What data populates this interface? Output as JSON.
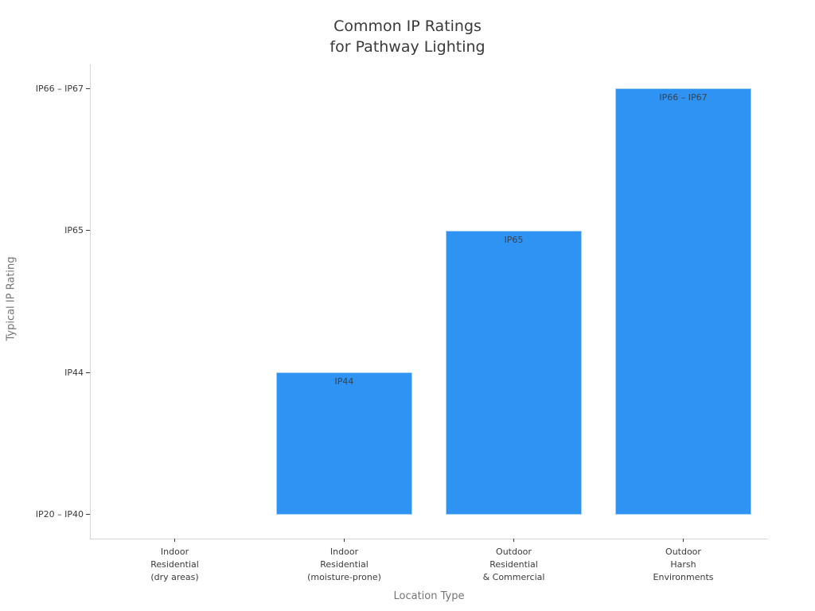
{
  "title_lines": [
    "Common IP Ratings",
    "for Pathway Lighting"
  ],
  "chart_data": {
    "type": "bar",
    "title": "Common IP Ratings for Pathway Lighting",
    "xlabel": "Location Type",
    "ylabel": "Typical IP Rating",
    "categories": [
      [
        "Indoor",
        "Residential",
        "(dry areas)"
      ],
      [
        "Indoor",
        "Residential",
        "(moisture-prone)"
      ],
      [
        "Outdoor",
        "Residential",
        "& Commercial"
      ],
      [
        "Outdoor",
        "Harsh",
        "Environments"
      ]
    ],
    "values": [
      1,
      2,
      3,
      4
    ],
    "baseline_value": 1,
    "bar_labels": [
      "",
      "IP44",
      "IP65",
      "IP66 – IP67"
    ],
    "ytick_values": [
      1,
      2,
      3,
      4
    ],
    "ytick_labels": [
      "IP20 – IP40",
      "IP44",
      "IP65",
      "IP66 – IP67"
    ],
    "ylim": [
      0.83,
      4.17
    ],
    "grid": false,
    "legend": false,
    "bar_color": "#2F93F3",
    "bar_edge_color": "#A5D2F3",
    "text_color": "#3a3a3a",
    "axis_label_color": "#757575",
    "spine_color": "#d6d6d6"
  }
}
